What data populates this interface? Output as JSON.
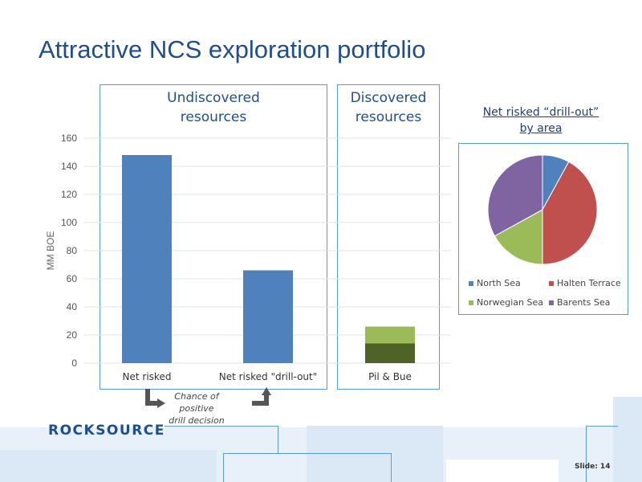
{
  "title": "Attractive NCS exploration portfolio",
  "boxes": {
    "undiscovered_label": "Undiscovered\nresources",
    "discovered_label": "Discovered\nresources"
  },
  "chart_data": [
    {
      "type": "bar",
      "title": "",
      "ylabel": "MM BOE",
      "xlabel": "",
      "ylim": [
        0,
        160
      ],
      "yticks": [
        0,
        20,
        40,
        60,
        80,
        100,
        120,
        140,
        160
      ],
      "categories": [
        "Net risked",
        "Net risked \"drill-out\"",
        "Pil & Bue"
      ],
      "series": [
        {
          "values": [
            148,
            66,
            14
          ],
          "color": "#4f81bd"
        },
        {
          "values": [
            0,
            0,
            12
          ],
          "color": "#9bbb59"
        }
      ],
      "stacked": true,
      "grid": true
    },
    {
      "type": "pie",
      "title": "Net risked “drill-out”\nby area",
      "slices": [
        {
          "label": "North Sea",
          "value": 8,
          "color": "#4f81bd"
        },
        {
          "label": "Halten Terrace",
          "value": 42,
          "color": "#c0504d"
        },
        {
          "label": "Norwegian Sea",
          "value": 17,
          "color": "#9bbb59"
        },
        {
          "label": "Barents Sea",
          "value": 33,
          "color": "#8064a2"
        }
      ],
      "legend_position": "bottom"
    }
  ],
  "annotation": {
    "chance_text": "Chance of positive\ndrill decision"
  },
  "logo": "ROCKSOURCE",
  "slide_label": "Slide: 14",
  "colors": {
    "title": "#1f4e8c",
    "box_border": "#5b9bd5",
    "bar_blue": "#4f81bd",
    "bar_dark_green": "#4f6228",
    "bar_light_green": "#9bbb59",
    "decor_light": "#dbe9f6"
  }
}
